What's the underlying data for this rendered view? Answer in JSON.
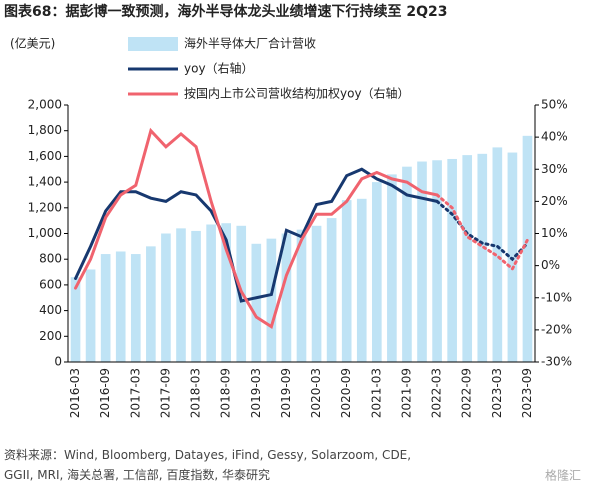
{
  "chart_data": {
    "type": "bar-line",
    "title": "图表68：据彭博一致预测，海外半导体龙头业绩增速下行持续至 2Q23",
    "y_axis_label": "(亿美元)",
    "source": "资料来源：Wind, Bloomberg, Datayes, iFind, Gessy, Solarzoom, CDE, GGII, MRI, 海关总署, 工信部, 百度指数, 华泰研究",
    "watermark": "格隆汇",
    "categories": [
      "2016-03",
      null,
      "2016-09",
      null,
      "2017-03",
      null,
      "2017-09",
      null,
      "2018-03",
      null,
      "2018-09",
      null,
      "2019-03",
      null,
      "2019-09",
      null,
      "2020-03",
      null,
      "2020-09",
      null,
      "2021-03",
      null,
      "2021-09",
      null,
      "2022-03",
      null,
      "2022-09",
      null,
      "2023-03",
      null,
      "2023-09"
    ],
    "ylim": [
      0,
      2000
    ],
    "yticks": [
      0,
      200,
      400,
      600,
      800,
      {
        "value": 1000,
        "label": "1,000"
      },
      {
        "value": 1200,
        "label": "1,200"
      },
      {
        "value": 1400,
        "label": "1,400"
      },
      {
        "value": 1600,
        "label": "1,600"
      },
      {
        "value": 1800,
        "label": "1,800"
      },
      {
        "value": 2000,
        "label": "2,000"
      }
    ],
    "y2lim": [
      -30,
      50
    ],
    "y2ticks": [
      {
        "value": -30,
        "label": "-30%"
      },
      {
        "value": -20,
        "label": "-20%"
      },
      {
        "value": -10,
        "label": "-10%"
      },
      {
        "value": 0,
        "label": "0%"
      },
      {
        "value": 10,
        "label": "10%"
      },
      {
        "value": 20,
        "label": "20%"
      },
      {
        "value": 30,
        "label": "30%"
      },
      {
        "value": 40,
        "label": "40%"
      },
      {
        "value": 50,
        "label": "50%"
      }
    ],
    "series": [
      {
        "name": "海外半导体大厂合计营收",
        "kind": "bar",
        "color": "#bfe3f5",
        "values": [
          660,
          720,
          840,
          860,
          840,
          900,
          1000,
          1040,
          1020,
          1070,
          1080,
          1060,
          920,
          960,
          1000,
          1030,
          1060,
          1120,
          1260,
          1270,
          1400,
          1460,
          1520,
          1560,
          1570,
          1580,
          1610,
          1620,
          1670,
          1630,
          1760
        ]
      },
      {
        "name": "yoy（右轴）",
        "kind": "line",
        "axis": "y2",
        "color": "#17386f",
        "dotted_from": 24,
        "values": [
          -4,
          6,
          17,
          23,
          23,
          21,
          20,
          23,
          22,
          17,
          8,
          -11,
          -10,
          -9,
          11,
          9,
          19,
          20,
          28,
          30,
          27,
          25,
          22,
          21,
          20,
          16,
          10,
          7,
          6,
          2,
          7
        ]
      },
      {
        "name": "按国内上市公司营收结构加权yoy（右轴）",
        "kind": "line",
        "axis": "y2",
        "color": "#f0636e",
        "dotted_from": 24,
        "values": [
          -7,
          2,
          15,
          22,
          25,
          42,
          37,
          41,
          37,
          20,
          5,
          -8,
          -16,
          -19,
          -3,
          8,
          16,
          16,
          20,
          27,
          29,
          27,
          26,
          23,
          22,
          18,
          9,
          6,
          3,
          -1,
          8
        ]
      }
    ]
  }
}
